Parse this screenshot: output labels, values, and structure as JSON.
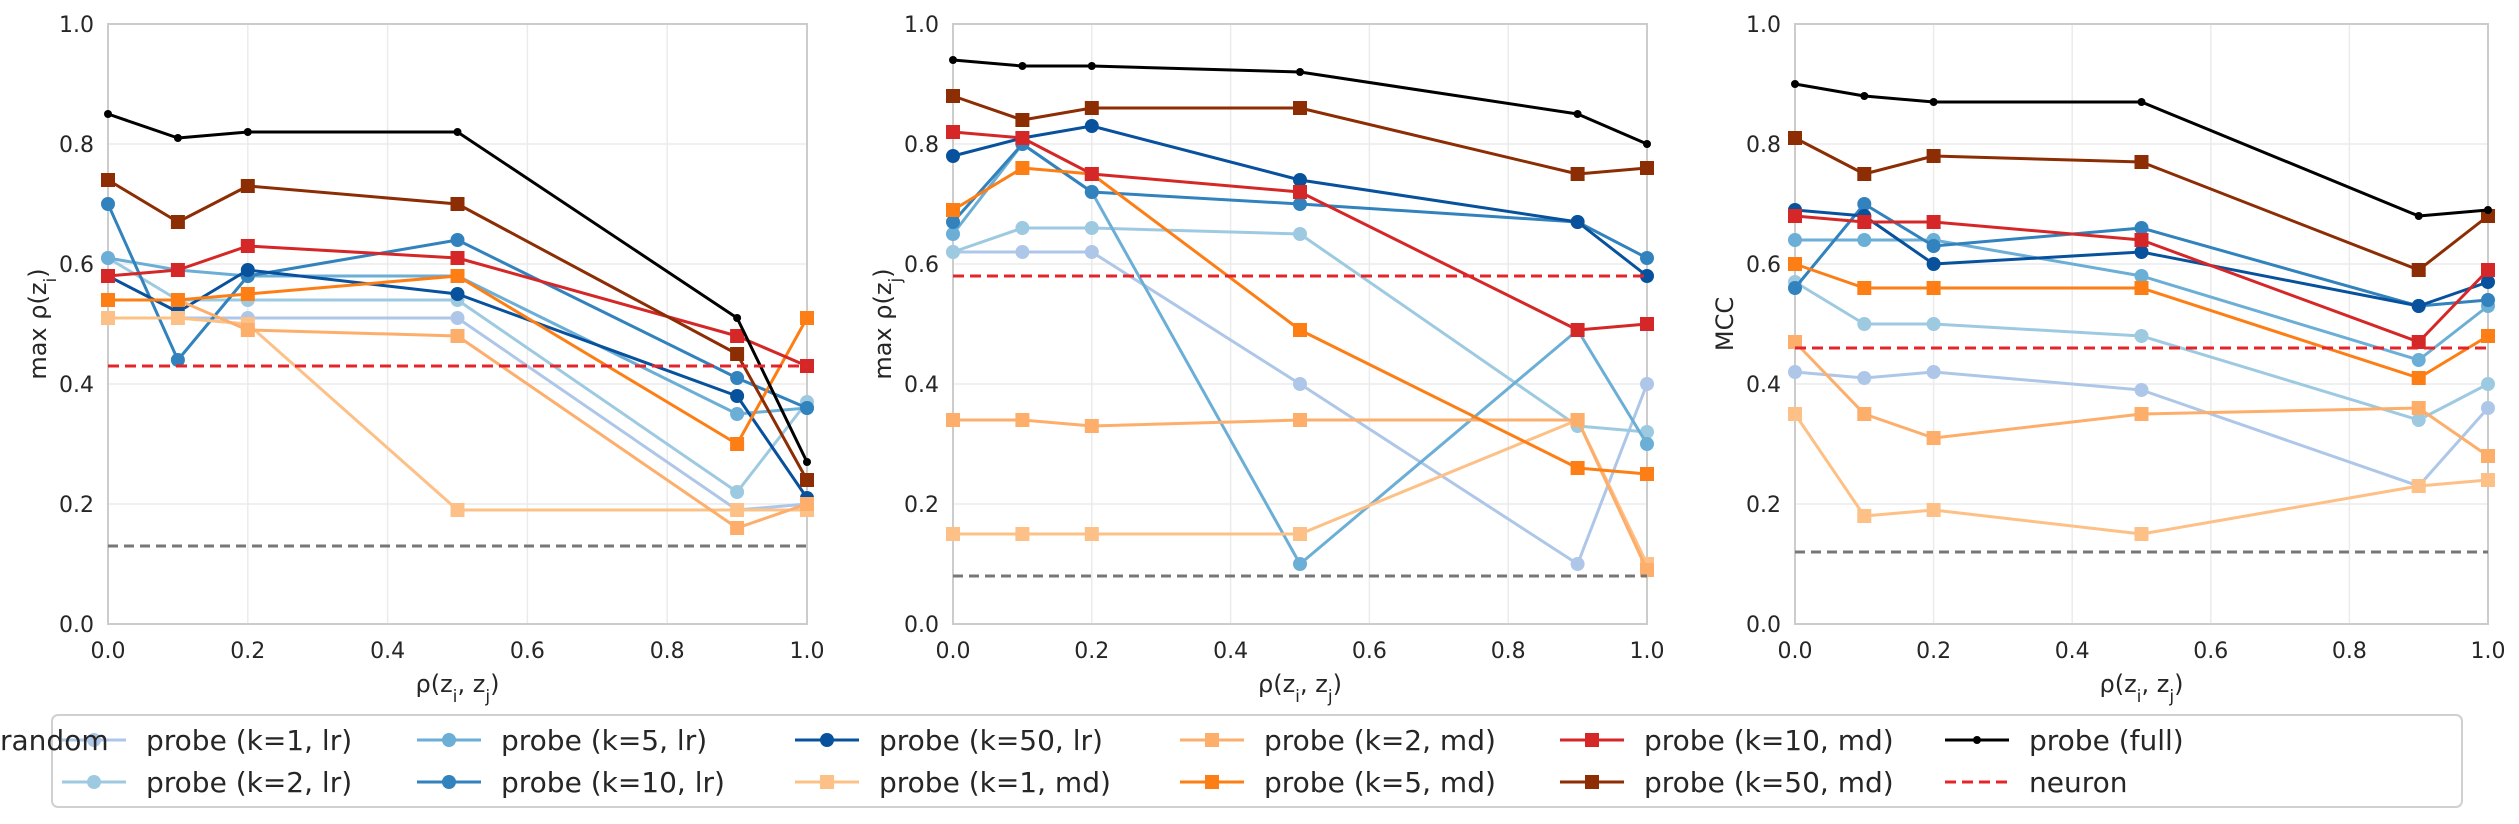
{
  "chart_data": [
    {
      "type": "line",
      "ylabel": "max ρ(z_i)",
      "xlabel": "ρ(z_i, z_j)",
      "xlim": [
        0,
        1
      ],
      "ylim": [
        0,
        1
      ],
      "xticks": [
        "0.0",
        "0.2",
        "0.4",
        "0.6",
        "0.8",
        "1.0"
      ],
      "yticks": [
        "0.0",
        "0.2",
        "0.4",
        "0.6",
        "0.8",
        "1.0"
      ],
      "grid": true,
      "x": [
        0.0,
        0.1,
        0.2,
        0.5,
        0.9,
        1.0
      ],
      "series": [
        {
          "name": "probe (k=1, lr)",
          "values": [
            0.51,
            0.51,
            0.51,
            0.51,
            0.19,
            0.2
          ]
        },
        {
          "name": "probe (k=2, lr)",
          "values": [
            0.61,
            0.54,
            0.54,
            0.54,
            0.22,
            0.37
          ]
        },
        {
          "name": "probe (k=5, lr)",
          "values": [
            0.61,
            0.59,
            0.58,
            0.58,
            0.35,
            0.36
          ]
        },
        {
          "name": "probe (k=10, lr)",
          "values": [
            0.7,
            0.44,
            0.58,
            0.64,
            0.41,
            0.36
          ]
        },
        {
          "name": "probe (k=50, lr)",
          "values": [
            0.58,
            0.52,
            0.59,
            0.55,
            0.38,
            0.21
          ]
        },
        {
          "name": "probe (k=1, md)",
          "values": [
            0.51,
            0.51,
            0.5,
            0.19,
            0.19,
            0.19
          ]
        },
        {
          "name": "probe (k=2, md)",
          "values": [
            0.54,
            0.54,
            0.49,
            0.48,
            0.16,
            0.2
          ]
        },
        {
          "name": "probe (k=5, md)",
          "values": [
            0.54,
            0.54,
            0.55,
            0.58,
            0.3,
            0.51
          ]
        },
        {
          "name": "probe (k=10, md)",
          "values": [
            0.58,
            0.59,
            0.63,
            0.61,
            0.48,
            0.43
          ]
        },
        {
          "name": "probe (k=50, md)",
          "values": [
            0.74,
            0.67,
            0.73,
            0.7,
            0.45,
            0.24
          ]
        },
        {
          "name": "probe (full)",
          "values": [
            0.85,
            0.81,
            0.82,
            0.82,
            0.51,
            0.27
          ]
        },
        {
          "name": "neuron",
          "values": [
            0.43,
            0.43,
            0.43,
            0.43,
            0.43,
            0.43
          ]
        },
        {
          "name": "random",
          "values": [
            0.13,
            0.13,
            0.13,
            0.13,
            0.13,
            0.13
          ]
        }
      ]
    },
    {
      "type": "line",
      "ylabel": "max ρ(z_j)",
      "xlabel": "ρ(z_i, z_j)",
      "xlim": [
        0,
        1
      ],
      "ylim": [
        0,
        1
      ],
      "xticks": [
        "0.0",
        "0.2",
        "0.4",
        "0.6",
        "0.8",
        "1.0"
      ],
      "yticks": [
        "0.0",
        "0.2",
        "0.4",
        "0.6",
        "0.8",
        "1.0"
      ],
      "grid": true,
      "x": [
        0.0,
        0.1,
        0.2,
        0.5,
        0.9,
        1.0
      ],
      "series": [
        {
          "name": "probe (k=1, lr)",
          "values": [
            0.62,
            0.62,
            0.62,
            0.4,
            0.1,
            0.4
          ]
        },
        {
          "name": "probe (k=2, lr)",
          "values": [
            0.62,
            0.66,
            0.66,
            0.65,
            0.33,
            0.32
          ]
        },
        {
          "name": "probe (k=5, lr)",
          "values": [
            0.65,
            0.8,
            0.72,
            0.1,
            0.49,
            0.3
          ]
        },
        {
          "name": "probe (k=10, lr)",
          "values": [
            0.67,
            0.8,
            0.72,
            0.7,
            0.67,
            0.61
          ]
        },
        {
          "name": "probe (k=50, lr)",
          "values": [
            0.78,
            0.81,
            0.83,
            0.74,
            0.67,
            0.58
          ]
        },
        {
          "name": "probe (k=1, md)",
          "values": [
            0.15,
            0.15,
            0.15,
            0.15,
            0.34,
            0.1
          ]
        },
        {
          "name": "probe (k=2, md)",
          "values": [
            0.34,
            0.34,
            0.33,
            0.34,
            0.34,
            0.09
          ]
        },
        {
          "name": "probe (k=5, md)",
          "values": [
            0.69,
            0.76,
            0.75,
            0.49,
            0.26,
            0.25
          ]
        },
        {
          "name": "probe (k=10, md)",
          "values": [
            0.82,
            0.81,
            0.75,
            0.72,
            0.49,
            0.5
          ]
        },
        {
          "name": "probe (k=50, md)",
          "values": [
            0.88,
            0.84,
            0.86,
            0.86,
            0.75,
            0.76
          ]
        },
        {
          "name": "probe (full)",
          "values": [
            0.94,
            0.93,
            0.93,
            0.92,
            0.85,
            0.8
          ]
        },
        {
          "name": "neuron",
          "values": [
            0.58,
            0.58,
            0.58,
            0.58,
            0.58,
            0.58
          ]
        },
        {
          "name": "random",
          "values": [
            0.08,
            0.08,
            0.08,
            0.08,
            0.08,
            0.08
          ]
        }
      ]
    },
    {
      "type": "line",
      "ylabel": "MCC",
      "xlabel": "ρ(z_i, z_j)",
      "xlim": [
        0,
        1
      ],
      "ylim": [
        0,
        1
      ],
      "xticks": [
        "0.0",
        "0.2",
        "0.4",
        "0.6",
        "0.8",
        "1.0"
      ],
      "yticks": [
        "0.0",
        "0.2",
        "0.4",
        "0.6",
        "0.8",
        "1.0"
      ],
      "grid": true,
      "x": [
        0.0,
        0.1,
        0.2,
        0.5,
        0.9,
        1.0
      ],
      "series": [
        {
          "name": "probe (k=1, lr)",
          "values": [
            0.42,
            0.41,
            0.42,
            0.39,
            0.23,
            0.36
          ]
        },
        {
          "name": "probe (k=2, lr)",
          "values": [
            0.57,
            0.5,
            0.5,
            0.48,
            0.34,
            0.4
          ]
        },
        {
          "name": "probe (k=5, lr)",
          "values": [
            0.64,
            0.64,
            0.64,
            0.58,
            0.44,
            0.53
          ]
        },
        {
          "name": "probe (k=10, lr)",
          "values": [
            0.56,
            0.7,
            0.63,
            0.66,
            0.53,
            0.54
          ]
        },
        {
          "name": "probe (k=50, lr)",
          "values": [
            0.69,
            0.68,
            0.6,
            0.62,
            0.53,
            0.57
          ]
        },
        {
          "name": "probe (k=1, md)",
          "values": [
            0.35,
            0.18,
            0.19,
            0.15,
            0.23,
            0.24
          ]
        },
        {
          "name": "probe (k=2, md)",
          "values": [
            0.47,
            0.35,
            0.31,
            0.35,
            0.36,
            0.28
          ]
        },
        {
          "name": "probe (k=5, md)",
          "values": [
            0.6,
            0.56,
            0.56,
            0.56,
            0.41,
            0.48
          ]
        },
        {
          "name": "probe (k=10, md)",
          "values": [
            0.68,
            0.67,
            0.67,
            0.64,
            0.47,
            0.59
          ]
        },
        {
          "name": "probe (k=50, md)",
          "values": [
            0.81,
            0.75,
            0.78,
            0.77,
            0.59,
            0.68
          ]
        },
        {
          "name": "probe (full)",
          "values": [
            0.9,
            0.88,
            0.87,
            0.87,
            0.68,
            0.69
          ]
        },
        {
          "name": "neuron",
          "values": [
            0.46,
            0.46,
            0.46,
            0.46,
            0.46,
            0.46
          ]
        },
        {
          "name": "random",
          "values": [
            0.12,
            0.12,
            0.12,
            0.12,
            0.12,
            0.12
          ]
        }
      ]
    }
  ],
  "series_styles": [
    {
      "name": "probe (k=1, lr)",
      "color": "#aec7e8",
      "marker": "circle",
      "dash": "solid"
    },
    {
      "name": "probe (k=2, lr)",
      "color": "#9ecae1",
      "marker": "circle",
      "dash": "solid"
    },
    {
      "name": "probe (k=5, lr)",
      "color": "#6baed6",
      "marker": "circle",
      "dash": "solid"
    },
    {
      "name": "probe (k=10, lr)",
      "color": "#3182bd",
      "marker": "circle",
      "dash": "solid"
    },
    {
      "name": "probe (k=50, lr)",
      "color": "#08519c",
      "marker": "circle",
      "dash": "solid"
    },
    {
      "name": "probe (k=1, md)",
      "color": "#fdc086",
      "marker": "square",
      "dash": "solid"
    },
    {
      "name": "probe (k=2, md)",
      "color": "#fdae6b",
      "marker": "square",
      "dash": "solid"
    },
    {
      "name": "probe (k=5, md)",
      "color": "#fd7e14",
      "marker": "square",
      "dash": "solid"
    },
    {
      "name": "probe (k=10, md)",
      "color": "#d62728",
      "marker": "square",
      "dash": "solid"
    },
    {
      "name": "probe (k=50, md)",
      "color": "#8c2d04",
      "marker": "square",
      "dash": "solid"
    },
    {
      "name": "probe (full)",
      "color": "#000000",
      "marker": "dot",
      "dash": "solid"
    },
    {
      "name": "neuron",
      "color": "#e3242b",
      "marker": "none",
      "dash": "dashed"
    },
    {
      "name": "random",
      "color": "#777777",
      "marker": "none",
      "dash": "dashed"
    }
  ],
  "legend": {
    "placement": "bottom",
    "columns": 6,
    "entries": [
      "probe (k=1, lr)",
      "probe (k=2, lr)",
      "probe (k=5, lr)",
      "probe (k=10, lr)",
      "probe (k=50, lr)",
      "probe (k=1, md)",
      "probe (k=2, md)",
      "probe (k=5, md)",
      "probe (k=10, md)",
      "probe (k=50, md)",
      "probe (full)",
      "neuron",
      "random"
    ]
  }
}
